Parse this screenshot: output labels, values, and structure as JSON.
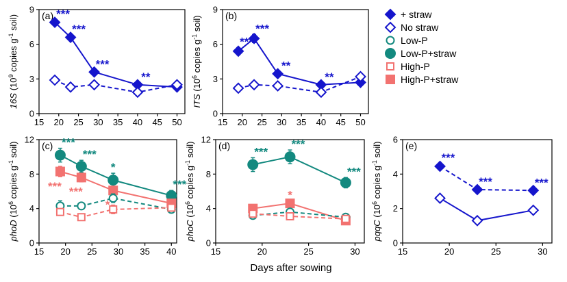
{
  "figure": {
    "shared_xlabel": "Days after sowing",
    "colors": {
      "straw": "#1515cc",
      "lowP": "#13897f",
      "highP": "#f27270",
      "axis": "#000000"
    }
  },
  "legend": [
    {
      "label": "+ straw",
      "marker": "diamond-filled",
      "color": "#1515cc"
    },
    {
      "label": "No straw",
      "marker": "diamond-open",
      "color": "#1515cc"
    },
    {
      "label": "Low-P",
      "marker": "circle-open",
      "color": "#13897f"
    },
    {
      "label": "Low-P+straw",
      "marker": "circle-filled",
      "color": "#13897f"
    },
    {
      "label": "High-P",
      "marker": "square-open",
      "color": "#f27270"
    },
    {
      "label": "High-P+straw",
      "marker": "square-filled",
      "color": "#f27270"
    }
  ],
  "chart_data": [
    {
      "id": "a",
      "panel_label": "(a)",
      "type": "line",
      "ylabel_gene": "16S",
      "ylabel_rest": " (10",
      "ylabel_exp": "9",
      "ylabel_tail": " copies g",
      "ylabel_exp2": "-1",
      "ylabel_end": " soil)",
      "xlim": [
        15,
        52
      ],
      "ylim": [
        0,
        9
      ],
      "xticks": [
        15,
        20,
        25,
        30,
        35,
        40,
        45,
        50
      ],
      "yticks": [
        0,
        3,
        6,
        9
      ],
      "series": [
        {
          "name": "+ straw",
          "marker": "diamond-filled",
          "color": "#1515cc",
          "dash": false,
          "x": [
            19,
            23,
            29,
            40,
            50
          ],
          "y": [
            7.9,
            6.6,
            3.6,
            2.5,
            2.3
          ],
          "err": [
            0.2,
            0.2,
            0.15,
            0.15,
            0.15
          ],
          "sig": [
            "***",
            "***",
            "***",
            "**",
            ""
          ]
        },
        {
          "name": "No straw",
          "marker": "diamond-open",
          "color": "#1515cc",
          "dash": true,
          "x": [
            19,
            23,
            29,
            40,
            50
          ],
          "y": [
            2.9,
            2.3,
            2.5,
            1.85,
            2.5
          ],
          "err": [
            0.2,
            0.15,
            0.15,
            0.15,
            0.15
          ],
          "sig": [
            "",
            "",
            "",
            "",
            ""
          ]
        }
      ]
    },
    {
      "id": "b",
      "panel_label": "(b)",
      "type": "line",
      "ylabel_gene": "ITS",
      "ylabel_rest": " (10",
      "ylabel_exp": "6",
      "ylabel_tail": " copies g",
      "ylabel_exp2": "-1",
      "ylabel_end": " soil)",
      "xlim": [
        15,
        52
      ],
      "ylim": [
        0,
        9
      ],
      "xticks": [
        15,
        20,
        25,
        30,
        35,
        40,
        45,
        50
      ],
      "yticks": [
        0,
        3,
        6,
        9
      ],
      "series": [
        {
          "name": "+ straw",
          "marker": "diamond-filled",
          "color": "#1515cc",
          "dash": false,
          "x": [
            19,
            23,
            29,
            40,
            50
          ],
          "y": [
            5.4,
            6.5,
            3.45,
            2.5,
            2.7
          ],
          "err": [
            0.3,
            0.35,
            0.2,
            0.15,
            0.15
          ],
          "sig": [
            "***",
            "***",
            "**",
            "**",
            ""
          ]
        },
        {
          "name": "No straw",
          "marker": "diamond-open",
          "color": "#1515cc",
          "dash": true,
          "x": [
            19,
            23,
            29,
            40,
            50
          ],
          "y": [
            2.2,
            2.5,
            2.4,
            1.85,
            3.2
          ],
          "err": [
            0.2,
            0.3,
            0.3,
            0.2,
            0.2
          ],
          "sig": [
            "",
            "",
            "",
            "",
            ""
          ]
        }
      ]
    },
    {
      "id": "c",
      "panel_label": "(c)",
      "type": "line",
      "ylabel_gene": "phoD",
      "ylabel_rest": " (10",
      "ylabel_exp": "6",
      "ylabel_tail": " copies g",
      "ylabel_exp2": "-1",
      "ylabel_end": " soil)",
      "xlim": [
        15,
        41
      ],
      "ylim": [
        0,
        12
      ],
      "xticks": [
        15,
        20,
        25,
        30,
        35,
        40
      ],
      "yticks": [
        0,
        4,
        8,
        12
      ],
      "series": [
        {
          "name": "Low-P+straw",
          "marker": "circle-filled",
          "color": "#13897f",
          "dash": false,
          "x": [
            19,
            23,
            29,
            40
          ],
          "y": [
            10.2,
            8.9,
            7.3,
            5.5
          ],
          "err": [
            0.8,
            0.7,
            0.8,
            0.6
          ],
          "sig": [
            "***",
            "***",
            "*",
            "***"
          ],
          "sig_pos": "above"
        },
        {
          "name": "High-P+straw",
          "marker": "square-filled",
          "color": "#f27270",
          "dash": false,
          "x": [
            19,
            23,
            29,
            40
          ],
          "y": [
            8.3,
            7.6,
            6.1,
            4.6
          ],
          "err": [
            0.6,
            0.5,
            0.5,
            0.4
          ],
          "sig": [
            "***",
            "***",
            "*",
            ""
          ],
          "sig_pos": "below"
        },
        {
          "name": "Low-P",
          "marker": "circle-open",
          "color": "#13897f",
          "dash": true,
          "x": [
            19,
            23,
            29,
            40
          ],
          "y": [
            4.3,
            4.3,
            5.2,
            3.9
          ],
          "err": [
            0.6,
            0.3,
            0.5,
            0.4
          ],
          "sig": [
            "",
            "",
            "",
            ""
          ]
        },
        {
          "name": "High-P",
          "marker": "square-open",
          "color": "#f27270",
          "dash": true,
          "x": [
            19,
            23,
            29,
            40
          ],
          "y": [
            3.6,
            3.0,
            3.9,
            4.1
          ],
          "err": [
            0.4,
            0.3,
            0.5,
            0.3
          ],
          "sig": [
            "",
            "",
            "",
            ""
          ]
        }
      ]
    },
    {
      "id": "d",
      "panel_label": "(d)",
      "type": "line",
      "ylabel_gene": "phoC",
      "ylabel_rest": " (10",
      "ylabel_exp": "6",
      "ylabel_tail": " copies g",
      "ylabel_exp2": "-1",
      "ylabel_end": " soil)",
      "xlim": [
        15,
        31
      ],
      "ylim": [
        0,
        12
      ],
      "xticks": [
        15,
        20,
        25,
        30
      ],
      "yticks": [
        0,
        4,
        8,
        12
      ],
      "series": [
        {
          "name": "Low-P+straw",
          "marker": "circle-filled",
          "color": "#13897f",
          "dash": false,
          "x": [
            19,
            23,
            29
          ],
          "y": [
            9.1,
            10.0,
            7.0
          ],
          "err": [
            0.8,
            0.8,
            0.6
          ],
          "sig": [
            "***",
            "***",
            "***"
          ],
          "sig_pos": "above"
        },
        {
          "name": "High-P+straw",
          "marker": "square-filled",
          "color": "#f27270",
          "dash": false,
          "x": [
            19,
            23,
            29
          ],
          "y": [
            4.0,
            4.6,
            2.6
          ],
          "err": [
            0.3,
            0.3,
            0.2
          ],
          "sig": [
            "",
            "*",
            ""
          ],
          "sig_pos": "above"
        },
        {
          "name": "Low-P",
          "marker": "circle-open",
          "color": "#13897f",
          "dash": true,
          "x": [
            19,
            23,
            29
          ],
          "y": [
            3.2,
            3.6,
            3.0
          ],
          "err": [
            0.3,
            0.3,
            0.3
          ],
          "sig": [
            "",
            "",
            ""
          ]
        },
        {
          "name": "High-P",
          "marker": "square-open",
          "color": "#f27270",
          "dash": true,
          "x": [
            19,
            23,
            29
          ],
          "y": [
            3.4,
            3.1,
            2.8
          ],
          "err": [
            0.3,
            0.3,
            0.3
          ],
          "sig": [
            "",
            "",
            ""
          ]
        }
      ]
    },
    {
      "id": "e",
      "panel_label": "(e)",
      "type": "line",
      "ylabel_gene": "pqqC",
      "ylabel_rest": " (10",
      "ylabel_exp": "6",
      "ylabel_tail": " copies g",
      "ylabel_exp2": "-1",
      "ylabel_end": " soil)",
      "xlim": [
        15,
        31
      ],
      "ylim": [
        0,
        6
      ],
      "xticks": [
        15,
        20,
        25,
        30
      ],
      "yticks": [
        0,
        2,
        4,
        6
      ],
      "series": [
        {
          "name": "+ straw",
          "marker": "diamond-filled",
          "color": "#1515cc",
          "dash": true,
          "x": [
            19,
            23,
            29
          ],
          "y": [
            4.45,
            3.1,
            3.05
          ],
          "err": [
            0.15,
            0.12,
            0.1
          ],
          "sig": [
            "***",
            "***",
            "***"
          ],
          "sig_pos": "above"
        },
        {
          "name": "No straw",
          "marker": "diamond-open",
          "color": "#1515cc",
          "dash": false,
          "x": [
            19,
            23,
            29
          ],
          "y": [
            2.6,
            1.3,
            1.9
          ],
          "err": [
            0.15,
            0.1,
            0.1
          ],
          "sig": [
            "",
            "",
            ""
          ]
        }
      ]
    }
  ]
}
